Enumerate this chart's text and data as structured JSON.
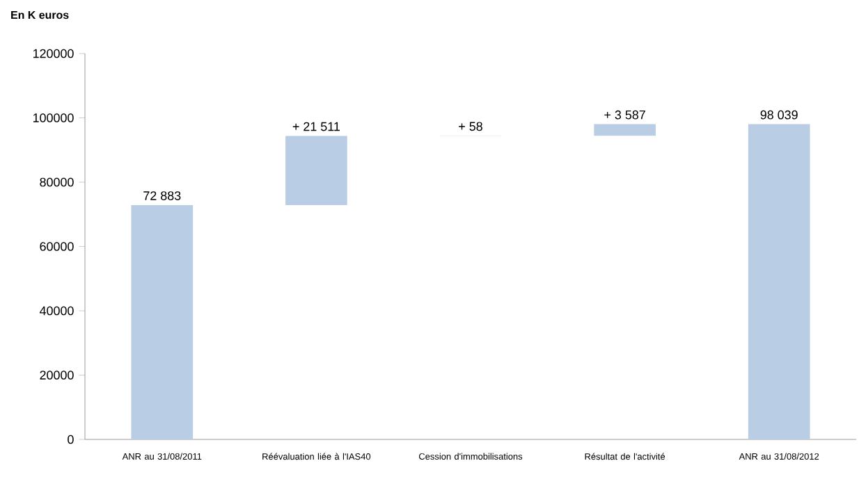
{
  "chart_data": {
    "type": "bar",
    "title": "En K euros",
    "categories": [
      "ANR au 31/08/2011",
      "Réévaluation liée à l'IAS40",
      "Cession d'immobilisations",
      "Résultat de l'activité",
      "ANR au 31/08/2012"
    ],
    "values": [
      72883,
      21511,
      58,
      3587,
      98039
    ],
    "base": [
      0,
      72883,
      94394,
      94452,
      0
    ],
    "value_labels": [
      "72 883",
      "+ 21 511",
      "+ 58",
      "+ 3 587",
      "98 039"
    ],
    "color": "#b9cde5",
    "ylim": [
      0,
      120000
    ],
    "yticks": [
      0,
      20000,
      40000,
      60000,
      80000,
      100000,
      120000
    ],
    "grid": false
  }
}
